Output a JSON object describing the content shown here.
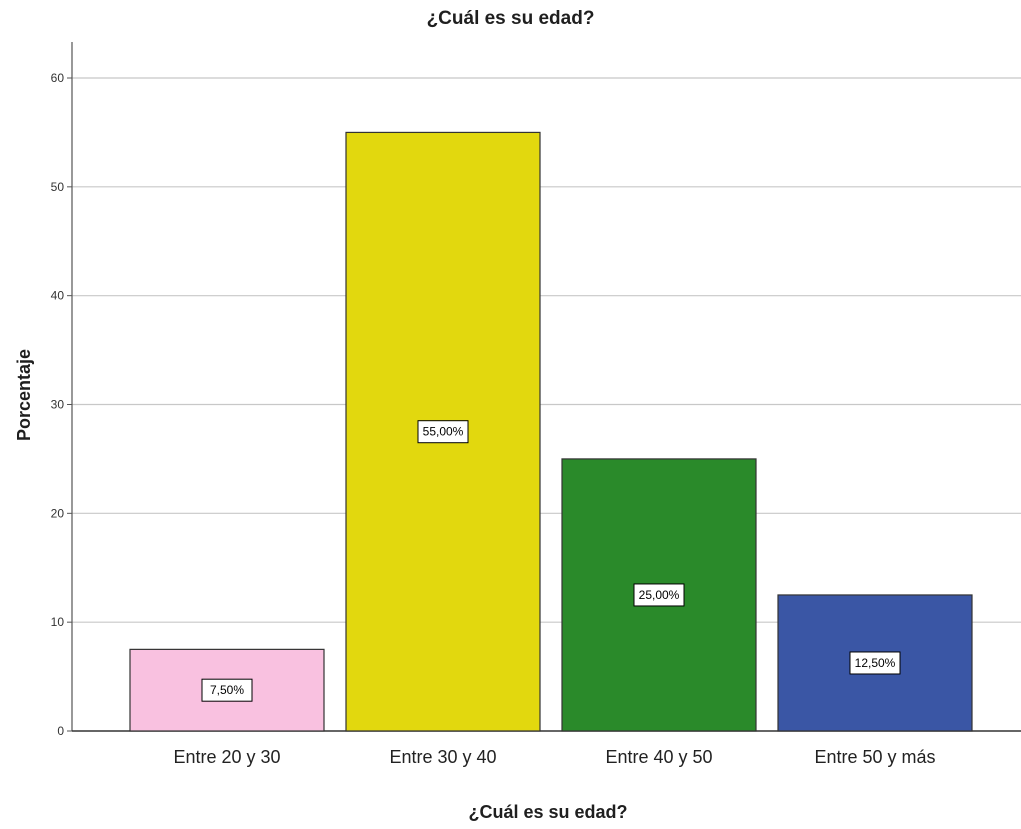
{
  "chart_data": {
    "type": "bar",
    "title": "¿Cuál es su edad?",
    "xlabel": "¿Cuál es su edad?",
    "ylabel": "Porcentaje",
    "categories": [
      "Entre 20 y 30",
      "Entre 30 y 40",
      "Entre 40 y 50",
      "Entre 50 y más"
    ],
    "values": [
      7.5,
      55,
      25,
      12.5
    ],
    "data_labels": [
      "7,50%",
      "55,00%",
      "25,00%",
      "12,50%"
    ],
    "colors": [
      "#f9c1e0",
      "#e2d80e",
      "#2a8a2a",
      "#3a56a5"
    ],
    "ylim": [
      0,
      60
    ],
    "yticks": [
      0,
      10,
      20,
      30,
      40,
      50,
      60
    ],
    "grid": true,
    "legend": "none"
  }
}
